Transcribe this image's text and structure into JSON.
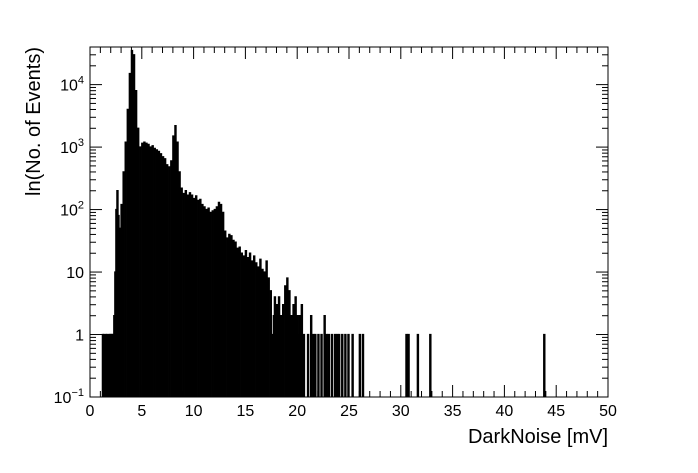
{
  "chart_data": {
    "type": "histogram",
    "title": "",
    "xlabel": "DarkNoise [mV]",
    "ylabel": "ln(No. of Events)",
    "xlim": [
      0,
      50
    ],
    "ylim": [
      0.1,
      40000
    ],
    "y_scale": "log",
    "grid": false,
    "legend": "none",
    "bin_width": 0.1,
    "x_ticks": [
      {
        "value": 0,
        "label": "0"
      },
      {
        "value": 5,
        "label": "5"
      },
      {
        "value": 10,
        "label": "10"
      },
      {
        "value": 15,
        "label": "15"
      },
      {
        "value": 20,
        "label": "20"
      },
      {
        "value": 25,
        "label": "25"
      },
      {
        "value": 30,
        "label": "30"
      },
      {
        "value": 35,
        "label": "35"
      },
      {
        "value": 40,
        "label": "40"
      },
      {
        "value": 45,
        "label": "45"
      },
      {
        "value": 50,
        "label": "50"
      }
    ],
    "y_ticks": [
      {
        "value": 0.1,
        "base": "10",
        "exp": "−1"
      },
      {
        "value": 1,
        "label": "1"
      },
      {
        "value": 10,
        "label": "10"
      },
      {
        "value": 100,
        "base": "10",
        "exp": "2"
      },
      {
        "value": 1000,
        "base": "10",
        "exp": "3"
      },
      {
        "value": 10000,
        "base": "10",
        "exp": "4"
      }
    ],
    "points": [
      [
        1.2,
        1
      ],
      [
        1.3,
        1
      ],
      [
        1.5,
        1
      ],
      [
        1.6,
        1
      ],
      [
        1.8,
        1
      ],
      [
        1.9,
        1
      ],
      [
        2.0,
        1
      ],
      [
        2.1,
        1
      ],
      [
        2.2,
        1
      ],
      [
        2.3,
        2
      ],
      [
        2.4,
        10
      ],
      [
        2.5,
        100
      ],
      [
        2.6,
        200
      ],
      [
        2.7,
        80
      ],
      [
        2.8,
        45
      ],
      [
        2.9,
        50
      ],
      [
        3.0,
        120
      ],
      [
        3.2,
        400
      ],
      [
        3.4,
        1200
      ],
      [
        3.6,
        4000
      ],
      [
        3.8,
        15000
      ],
      [
        4.0,
        35000
      ],
      [
        4.2,
        30000
      ],
      [
        4.4,
        8000
      ],
      [
        4.6,
        2000
      ],
      [
        4.8,
        1000
      ],
      [
        5.0,
        1150
      ],
      [
        5.2,
        1200
      ],
      [
        5.4,
        1150
      ],
      [
        5.6,
        1100
      ],
      [
        5.8,
        1000
      ],
      [
        6.0,
        1050
      ],
      [
        6.2,
        950
      ],
      [
        6.4,
        900
      ],
      [
        6.6,
        850
      ],
      [
        6.8,
        780
      ],
      [
        7.0,
        700
      ],
      [
        7.2,
        650
      ],
      [
        7.4,
        520
      ],
      [
        7.6,
        480
      ],
      [
        7.8,
        600
      ],
      [
        8.0,
        1500
      ],
      [
        8.2,
        2200
      ],
      [
        8.4,
        1200
      ],
      [
        8.6,
        400
      ],
      [
        8.8,
        220
      ],
      [
        9.0,
        180
      ],
      [
        9.2,
        200
      ],
      [
        9.4,
        170
      ],
      [
        9.6,
        185
      ],
      [
        9.8,
        170
      ],
      [
        10.0,
        150
      ],
      [
        10.2,
        165
      ],
      [
        10.4,
        140
      ],
      [
        10.6,
        145
      ],
      [
        10.8,
        120
      ],
      [
        11.0,
        110
      ],
      [
        11.2,
        100
      ],
      [
        11.4,
        105
      ],
      [
        11.6,
        90
      ],
      [
        11.8,
        95
      ],
      [
        12.0,
        100
      ],
      [
        12.2,
        110
      ],
      [
        12.4,
        130
      ],
      [
        12.6,
        120
      ],
      [
        12.8,
        90
      ],
      [
        13.0,
        45
      ],
      [
        13.2,
        35
      ],
      [
        13.4,
        40
      ],
      [
        13.6,
        38
      ],
      [
        13.8,
        32
      ],
      [
        14.0,
        30
      ],
      [
        14.2,
        24
      ],
      [
        14.4,
        25
      ],
      [
        14.6,
        20
      ],
      [
        14.8,
        18
      ],
      [
        15.0,
        22
      ],
      [
        15.2,
        17
      ],
      [
        15.4,
        20
      ],
      [
        15.6,
        15
      ],
      [
        15.8,
        18
      ],
      [
        16.0,
        14
      ],
      [
        16.2,
        12
      ],
      [
        16.4,
        16
      ],
      [
        16.6,
        11
      ],
      [
        16.8,
        10
      ],
      [
        17.0,
        15
      ],
      [
        17.2,
        8
      ],
      [
        17.4,
        5
      ],
      [
        17.6,
        1
      ],
      [
        17.7,
        2
      ],
      [
        17.8,
        4
      ],
      [
        18.0,
        3
      ],
      [
        18.2,
        4
      ],
      [
        18.4,
        2
      ],
      [
        18.6,
        3
      ],
      [
        18.8,
        6
      ],
      [
        19.0,
        8
      ],
      [
        19.1,
        1
      ],
      [
        19.2,
        5
      ],
      [
        19.4,
        2
      ],
      [
        19.6,
        3
      ],
      [
        19.8,
        4
      ],
      [
        20.0,
        2
      ],
      [
        20.1,
        1
      ],
      [
        20.2,
        2
      ],
      [
        20.4,
        3
      ],
      [
        20.6,
        1
      ],
      [
        21.0,
        1
      ],
      [
        21.3,
        2
      ],
      [
        21.5,
        1
      ],
      [
        21.7,
        1
      ],
      [
        22.0,
        1
      ],
      [
        22.3,
        1
      ],
      [
        22.6,
        2
      ],
      [
        22.8,
        1
      ],
      [
        23.0,
        1
      ],
      [
        23.3,
        1
      ],
      [
        23.6,
        1
      ],
      [
        23.8,
        1
      ],
      [
        24.0,
        1
      ],
      [
        24.3,
        1
      ],
      [
        24.6,
        1
      ],
      [
        24.9,
        1
      ],
      [
        25.3,
        1
      ],
      [
        26.0,
        1
      ],
      [
        26.3,
        1
      ],
      [
        30.5,
        1
      ],
      [
        30.7,
        1
      ],
      [
        31.6,
        1
      ],
      [
        32.8,
        1
      ],
      [
        43.8,
        1
      ]
    ]
  }
}
